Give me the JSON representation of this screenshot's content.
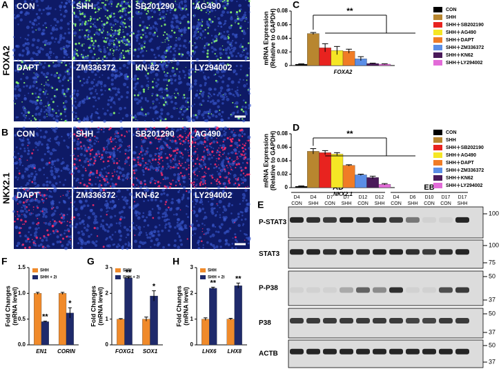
{
  "image_panels": [
    {
      "letter": "A",
      "marker": "FOXA2",
      "labels": [
        "CON",
        "SHH",
        "SB201290",
        "AG490",
        "DAPT",
        "ZM336372",
        "KN-62",
        "LY294002"
      ]
    },
    {
      "letter": "B",
      "marker": "NKX2.1",
      "labels": [
        "CON",
        "SHH",
        "SB201290",
        "AG490",
        "DAPT",
        "ZM336372",
        "KN-62",
        "LY294002"
      ]
    }
  ],
  "blot": {
    "letter": "E",
    "groups": [
      "AD",
      "EB"
    ],
    "days": [
      "D4",
      "D4",
      "D7",
      "D7",
      "D12",
      "D12",
      "D4",
      "D6",
      "D10",
      "D17",
      "D17"
    ],
    "conditions": [
      "CON",
      "SHH",
      "CON",
      "SHH",
      "CON",
      "SHH",
      "CON",
      "SHH",
      "CON",
      "CON",
      "SHH"
    ],
    "rows": [
      {
        "name": "P-STAT3",
        "markers": [
          100
        ]
      },
      {
        "name": "STAT3",
        "markers": [
          100,
          75
        ]
      },
      {
        "name": "P-P38",
        "markers": [
          50,
          37
        ]
      },
      {
        "name": "P38",
        "markers": [
          50,
          37
        ]
      },
      {
        "name": "ACTB",
        "markers": [
          50,
          37
        ]
      }
    ]
  },
  "chart_data": [
    {
      "type": "bar",
      "panel": "C",
      "ylabel": [
        "mRNA Expression",
        "(Relative to GAPDH)"
      ],
      "categories": [
        "FOXA2"
      ],
      "ylim": [
        0,
        0.08
      ],
      "yticks": [
        0,
        0.02,
        0.04,
        0.06,
        0.08
      ],
      "annotations": [
        "**"
      ],
      "legend": "right",
      "series": [
        {
          "name": "CON",
          "color": "#000000",
          "values": [
            0.002
          ],
          "errors": [
            0.0005
          ]
        },
        {
          "name": "SHH",
          "color": "#b8862f",
          "values": [
            0.047
          ],
          "errors": [
            0.0015
          ]
        },
        {
          "name": "SHH＋SB202190",
          "color": "#e8231f",
          "values": [
            0.026
          ],
          "errors": [
            0.006
          ]
        },
        {
          "name": "SHH＋AG490",
          "color": "#f5e625",
          "values": [
            0.022
          ],
          "errors": [
            0.006
          ]
        },
        {
          "name": "SHH＋DAPT",
          "color": "#f07c26",
          "values": [
            0.021
          ],
          "errors": [
            0.003
          ]
        },
        {
          "name": "SHH＋ZM336372",
          "color": "#5b8ee6",
          "values": [
            0.01
          ],
          "errors": [
            0.003
          ]
        },
        {
          "name": "SHH＋KN62",
          "color": "#4a1a5a",
          "values": [
            0.003
          ],
          "errors": [
            0.0005
          ]
        },
        {
          "name": "SHH＋LY294002",
          "color": "#e26bd8",
          "values": [
            0.002
          ],
          "errors": [
            0.0005
          ]
        }
      ]
    },
    {
      "type": "bar",
      "panel": "D",
      "ylabel": [
        "mRNA Expression",
        "(Relative to GAPDH)"
      ],
      "categories": [
        "NKX2.1"
      ],
      "ylim": [
        0,
        0.08
      ],
      "yticks": [
        0,
        0.02,
        0.04,
        0.06,
        0.08
      ],
      "annotations": [
        "**"
      ],
      "legend": "right",
      "series": [
        {
          "name": "CON",
          "color": "#000000",
          "values": [
            0.002
          ],
          "errors": [
            0.0005
          ]
        },
        {
          "name": "SHH",
          "color": "#b8862f",
          "values": [
            0.054
          ],
          "errors": [
            0.004
          ]
        },
        {
          "name": "SHH＋SB202190",
          "color": "#e8231f",
          "values": [
            0.052
          ],
          "errors": [
            0.003
          ]
        },
        {
          "name": "SHH＋AG490",
          "color": "#f5e625",
          "values": [
            0.05
          ],
          "errors": [
            0.002
          ]
        },
        {
          "name": "SHH＋DAPT",
          "color": "#f07c26",
          "values": [
            0.033
          ],
          "errors": [
            0.001
          ]
        },
        {
          "name": "SHH＋ZM336372",
          "color": "#5b8ee6",
          "values": [
            0.019
          ],
          "errors": [
            0.001
          ]
        },
        {
          "name": "SHH＋KN62",
          "color": "#4a1a5a",
          "values": [
            0.015
          ],
          "errors": [
            0.002
          ]
        },
        {
          "name": "SHH＋LY294002",
          "color": "#e26bd8",
          "values": [
            0.005
          ],
          "errors": [
            0.001
          ]
        }
      ]
    },
    {
      "type": "bar",
      "panel": "F",
      "ylabel": [
        "Fold Changes",
        "(mRNA level)"
      ],
      "categories": [
        "EN1",
        "CORIN"
      ],
      "ylim": [
        0,
        1.5
      ],
      "yticks": [
        {
          "value": 0,
          "label": "0.0"
        },
        0.5,
        {
          "value": 1,
          "label": "1.0"
        },
        1.5
      ],
      "annotations": [
        "**",
        "*"
      ],
      "legend": "inside",
      "series": [
        {
          "name": "SHH",
          "color": "#f08a2a",
          "values": [
            1.0,
            1.0
          ],
          "errors": [
            0.02,
            0.02
          ]
        },
        {
          "name": "SHH + 2i",
          "color": "#1f2a6b",
          "values": [
            0.45,
            0.62
          ],
          "errors": [
            0.01,
            0.1
          ]
        }
      ]
    },
    {
      "type": "bar",
      "panel": "G",
      "ylabel": [
        "Fold Changes",
        "(mRNA level)"
      ],
      "categories": [
        "FOXG1",
        "SOX1"
      ],
      "ylim": [
        0,
        3
      ],
      "yticks": [
        0,
        1,
        2,
        3
      ],
      "annotations": [
        "**",
        "*"
      ],
      "legend": "inside",
      "series": [
        {
          "name": "SHH",
          "color": "#f08a2a",
          "values": [
            1.0,
            1.0
          ],
          "errors": [
            0.02,
            0.08
          ]
        },
        {
          "name": "SHH + 2i",
          "color": "#1f2a6b",
          "values": [
            2.6,
            1.9
          ],
          "errors": [
            0.04,
            0.2
          ]
        }
      ]
    },
    {
      "type": "bar",
      "panel": "H",
      "ylabel": [
        "Fold Changes",
        "(mRNA level)"
      ],
      "categories": [
        "LHX6",
        "LHX8"
      ],
      "ylim": [
        0,
        3
      ],
      "yticks": [
        0,
        1,
        2,
        3
      ],
      "annotations": [
        "**",
        "**"
      ],
      "legend": "inside",
      "series": [
        {
          "name": "SHH",
          "color": "#f08a2a",
          "values": [
            1.0,
            1.0
          ],
          "errors": [
            0.05,
            0.03
          ]
        },
        {
          "name": "SHH + 2i",
          "color": "#1f2a6b",
          "values": [
            2.2,
            2.3
          ],
          "errors": [
            0.04,
            0.1
          ]
        }
      ]
    }
  ]
}
